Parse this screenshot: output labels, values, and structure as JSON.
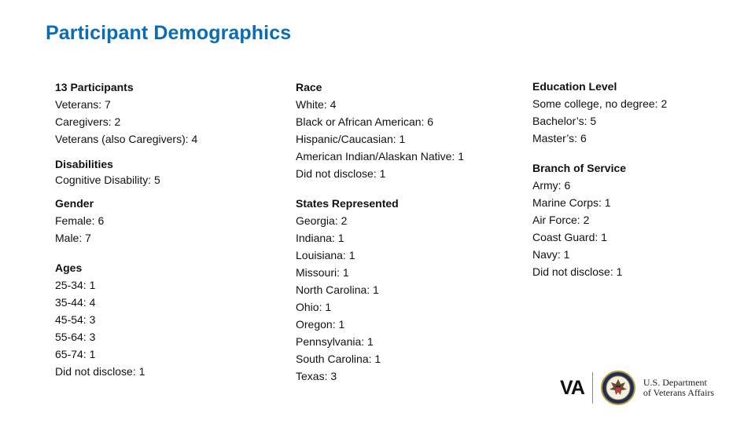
{
  "title": "Participant Demographics",
  "colors": {
    "title": "#0a6cb4"
  },
  "columns": [
    {
      "sections": [
        {
          "heading": "13 Participants",
          "items": [
            "Veterans: 7",
            "Caregivers: 2",
            "Veterans (also Caregivers): 4"
          ]
        },
        {
          "heading": "Disabilities",
          "items": [
            "Cognitive Disability: 5"
          ]
        },
        {
          "heading": "Gender",
          "items": [
            "Female: 6",
            "Male: 7"
          ]
        },
        {
          "heading": "Ages",
          "items": [
            "25-34: 1",
            "35-44: 4",
            "45-54: 3",
            "55-64: 3",
            "65-74: 1",
            "Did not disclose: 1"
          ]
        }
      ]
    },
    {
      "sections": [
        {
          "heading": "Race",
          "items": [
            "White: 4",
            "Black or African American: 6",
            "Hispanic/Caucasian: 1",
            "American Indian/Alaskan Native: 1",
            "Did not disclose: 1"
          ]
        },
        {
          "heading": "States Represented",
          "items": [
            "Georgia: 2",
            "Indiana: 1",
            "Louisiana: 1",
            "Missouri: 1",
            "North Carolina: 1",
            "Ohio: 1",
            "Oregon: 1",
            "Pennsylvania: 1",
            "South Carolina: 1",
            "Texas: 3"
          ]
        }
      ]
    },
    {
      "sections": [
        {
          "heading": "Education Level",
          "items": [
            "Some college, no degree: 2",
            "Bachelor’s: 5",
            "Master’s: 6"
          ]
        },
        {
          "heading": "Branch of Service",
          "items": [
            "Army: 6",
            "Marine Corps: 1",
            "Air Force: 2",
            "Coast Guard: 1",
            "Navy: 1",
            "Did not disclose: 1"
          ]
        }
      ]
    }
  ],
  "logo": {
    "mark": "VA",
    "dept_line1": "U.S. Department",
    "dept_line2": "of Veterans Affairs",
    "seal_icon": "va-seal-icon"
  }
}
